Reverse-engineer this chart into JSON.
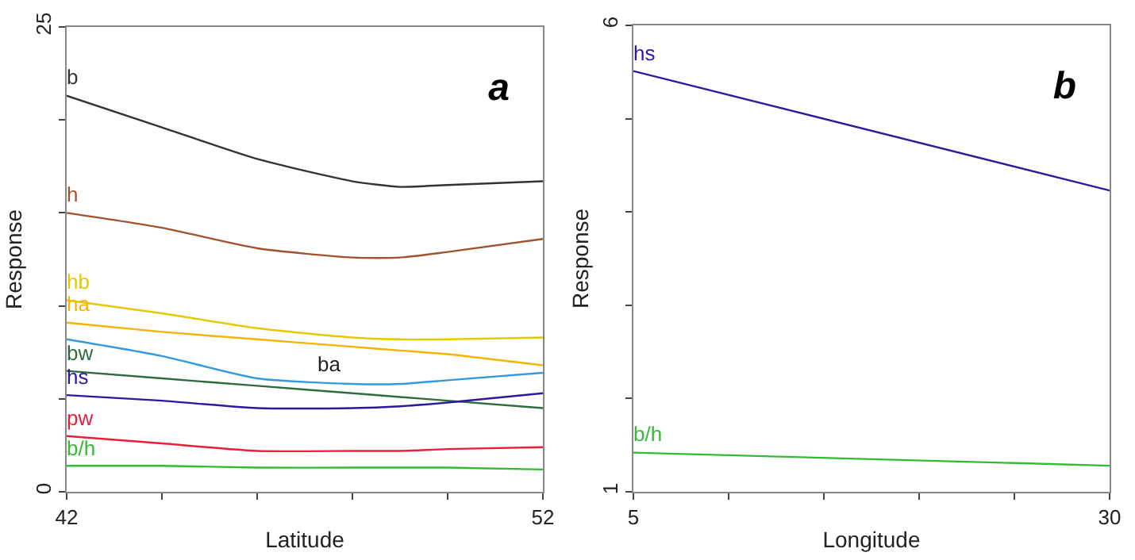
{
  "chart_data": [
    {
      "type": "line",
      "title": "a",
      "xlabel": "Latitude",
      "ylabel": "Response",
      "x": [
        42,
        44,
        46,
        48,
        49,
        50,
        52
      ],
      "series": [
        {
          "name": "b",
          "color": "#333333",
          "values": [
            21.3,
            19.6,
            17.9,
            16.7,
            16.4,
            16.5,
            16.7
          ]
        },
        {
          "name": "h",
          "color": "#a0522d",
          "values": [
            15.0,
            14.2,
            13.1,
            12.6,
            12.6,
            12.9,
            13.6
          ]
        },
        {
          "name": "hb",
          "color": "#e6c800",
          "values": [
            10.3,
            9.6,
            8.8,
            8.3,
            8.2,
            8.2,
            8.3
          ]
        },
        {
          "name": "ha",
          "color": "#f5b400",
          "values": [
            9.1,
            8.6,
            8.2,
            7.8,
            7.6,
            7.4,
            6.8
          ]
        },
        {
          "color": "#3399dd",
          "values": [
            8.2,
            7.3,
            6.1,
            5.8,
            5.8,
            6.0,
            6.4
          ]
        },
        {
          "name": "bw",
          "color": "#2e6b3e",
          "values": [
            6.5,
            6.1,
            5.7,
            5.3,
            5.1,
            4.9,
            4.5
          ]
        },
        {
          "name": "hs",
          "color": "#2a1a9e",
          "values": [
            5.2,
            4.9,
            4.5,
            4.5,
            4.6,
            4.8,
            5.3
          ]
        },
        {
          "name": "pw",
          "color": "#e8203c",
          "values": [
            3.0,
            2.6,
            2.2,
            2.2,
            2.2,
            2.3,
            2.4
          ]
        },
        {
          "name": "b/h",
          "color": "#33bb33",
          "values": [
            1.4,
            1.4,
            1.3,
            1.3,
            1.3,
            1.3,
            1.2
          ]
        }
      ],
      "xlim": [
        42,
        52
      ],
      "xticks": [
        42,
        {
          "value": 44,
          "label": null
        },
        {
          "value": 46,
          "label": null
        },
        {
          "value": 48,
          "label": null
        },
        {
          "value": 50,
          "label": null
        },
        52
      ],
      "ylim": [
        0,
        25
      ],
      "yticks": [
        0,
        {
          "value": 5,
          "label": null
        },
        {
          "value": 10,
          "label": null
        },
        {
          "value": 15,
          "label": null
        },
        {
          "value": 20,
          "label": null
        },
        25
      ],
      "annotations": [
        {
          "text": "ba",
          "x": 47.5,
          "y": 5.9
        }
      ],
      "grid": false,
      "legend": false
    },
    {
      "type": "line",
      "title": "b",
      "xlabel": "Longitude",
      "ylabel": "Response",
      "x": [
        5,
        30
      ],
      "series": [
        {
          "name": "hs",
          "color": "#2a1a9e",
          "values": [
            5.51,
            4.23
          ]
        },
        {
          "name": "b/h",
          "color": "#33bb33",
          "values": [
            1.42,
            1.28
          ]
        }
      ],
      "xlim": [
        5,
        30
      ],
      "xticks": [
        5,
        {
          "value": 10,
          "label": null
        },
        {
          "value": 15,
          "label": null
        },
        {
          "value": 20,
          "label": null
        },
        {
          "value": 25,
          "label": null
        },
        30
      ],
      "ylim": [
        1,
        6
      ],
      "yticks": [
        1,
        {
          "value": 2,
          "label": null
        },
        {
          "value": 3,
          "label": null
        },
        {
          "value": 4,
          "label": null
        },
        {
          "value": 5,
          "label": null
        },
        6
      ],
      "grid": false,
      "legend": false
    }
  ]
}
